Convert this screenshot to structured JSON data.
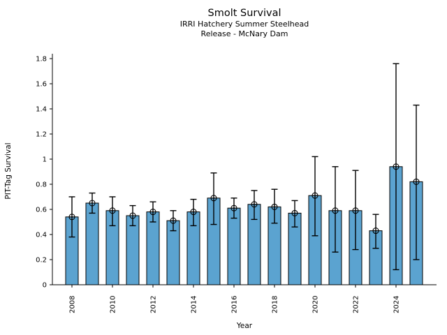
{
  "chart_data": {
    "type": "bar",
    "title": "Smolt Survival",
    "subtitle1": "IRRI Hatchery Summer Steelhead",
    "subtitle2": "Release - McNary Dam",
    "xlabel": "Year",
    "ylabel": "PIT-Tag Survival",
    "ylim": [
      0,
      1.8
    ],
    "yticks": [
      "0",
      "0.2",
      "0.4",
      "0.6",
      "0.8",
      "1",
      "1.2",
      "1.4",
      "1.6",
      "1.8"
    ],
    "ytick_values": [
      0,
      0.2,
      0.4,
      0.6,
      0.8,
      1.0,
      1.2,
      1.4,
      1.6,
      1.8
    ],
    "categories": [
      2008,
      2009,
      2010,
      2011,
      2012,
      2013,
      2014,
      2015,
      2016,
      2017,
      2018,
      2019,
      2020,
      2021,
      2022,
      2023,
      2024,
      2025
    ],
    "xtick_labels": [
      "2008",
      "2010",
      "2012",
      "2014",
      "2016",
      "2018",
      "2020",
      "2022",
      "2024"
    ],
    "xtick_years": [
      2008,
      2010,
      2012,
      2014,
      2016,
      2018,
      2020,
      2022,
      2024
    ],
    "values": [
      0.54,
      0.65,
      0.59,
      0.55,
      0.58,
      0.51,
      0.58,
      0.69,
      0.61,
      0.64,
      0.62,
      0.57,
      0.71,
      0.59,
      0.59,
      0.43,
      0.94,
      0.82
    ],
    "error_low": [
      0.38,
      0.57,
      0.47,
      0.47,
      0.5,
      0.43,
      0.47,
      0.48,
      0.53,
      0.52,
      0.49,
      0.46,
      0.39,
      0.26,
      0.28,
      0.29,
      0.12,
      0.2
    ],
    "error_high": [
      0.7,
      0.73,
      0.7,
      0.63,
      0.66,
      0.59,
      0.68,
      0.89,
      0.69,
      0.75,
      0.76,
      0.67,
      1.02,
      0.94,
      0.91,
      0.56,
      1.76,
      1.43
    ],
    "bar_color": "#5BA3D0",
    "edge_color": "#000000",
    "error_color": "#000000",
    "grid": "off",
    "legend": "none",
    "marker": "open-circle-cross"
  }
}
